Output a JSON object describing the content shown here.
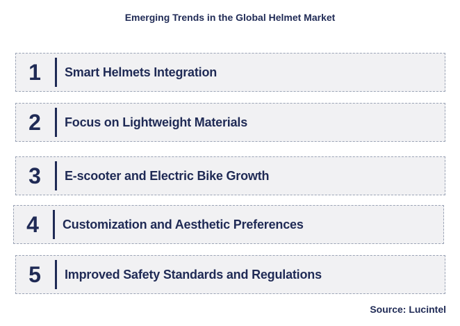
{
  "title": "Emerging Trends in the Global Helmet Market",
  "items": [
    {
      "number": "1",
      "label": "Smart Helmets Integration"
    },
    {
      "number": "2",
      "label": "Focus on Lightweight Materials"
    },
    {
      "number": "3",
      "label": "E-scooter and Electric Bike Growth"
    },
    {
      "number": "4",
      "label": "Customization and Aesthetic Preferences"
    },
    {
      "number": "5",
      "label": "Improved Safety Standards and Regulations"
    }
  ],
  "source": "Source: Lucintel"
}
